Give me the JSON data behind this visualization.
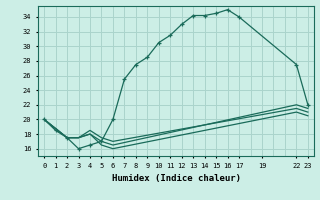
{
  "xlabel": "Humidex (Indice chaleur)",
  "bg_color": "#cceee6",
  "grid_color": "#aad4cc",
  "line_color": "#1a6b5a",
  "xlim": [
    -0.5,
    23.5
  ],
  "ylim": [
    15.0,
    35.5
  ],
  "yticks": [
    16,
    18,
    20,
    22,
    24,
    26,
    28,
    30,
    32,
    34
  ],
  "xtick_positions": [
    0,
    1,
    2,
    3,
    4,
    5,
    6,
    7,
    8,
    9,
    10,
    11,
    12,
    13,
    14,
    15,
    16,
    17,
    19,
    22,
    23
  ],
  "xtick_labels": [
    "0",
    "1",
    "2",
    "3",
    "4",
    "5",
    "6",
    "7",
    "8",
    "9",
    "10",
    "11",
    "12",
    "13",
    "14",
    "15",
    "16",
    "17",
    "19",
    "22",
    "23"
  ],
  "series": [
    {
      "x": [
        0,
        1,
        2,
        3,
        4,
        5,
        6,
        7,
        8,
        9,
        10,
        11,
        12,
        13,
        14,
        15,
        16,
        17,
        22,
        23
      ],
      "y": [
        20,
        18.5,
        17.5,
        16.0,
        16.5,
        17.0,
        20.0,
        25.5,
        27.5,
        28.5,
        30.5,
        31.5,
        33.0,
        34.2,
        34.2,
        34.5,
        35.0,
        34.0,
        27.5,
        22.0
      ],
      "marker": "+"
    },
    {
      "x": [
        0,
        2,
        3,
        4,
        5,
        6,
        22,
        23
      ],
      "y": [
        20,
        17.5,
        17.5,
        18.0,
        17.0,
        16.5,
        22.0,
        21.5
      ],
      "marker": null
    },
    {
      "x": [
        0,
        2,
        3,
        4,
        5,
        6,
        22,
        23
      ],
      "y": [
        20,
        17.5,
        17.5,
        18.5,
        17.5,
        17.0,
        21.5,
        21.0
      ],
      "marker": null
    },
    {
      "x": [
        0,
        2,
        3,
        4,
        5,
        6,
        22,
        23
      ],
      "y": [
        20,
        17.5,
        17.5,
        18.0,
        16.5,
        16.0,
        21.0,
        20.5
      ],
      "marker": null
    }
  ]
}
